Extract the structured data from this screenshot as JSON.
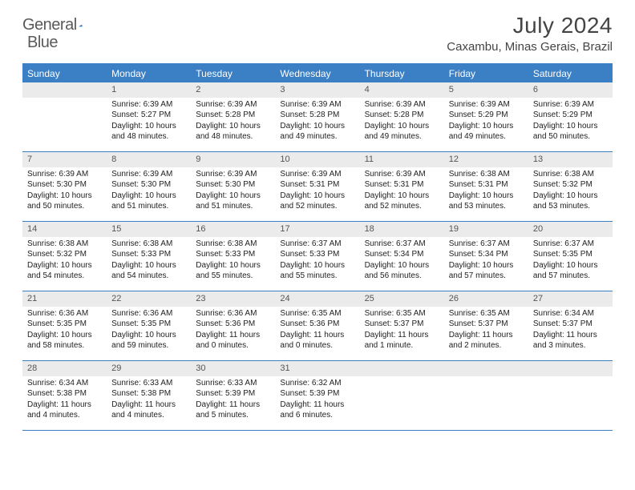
{
  "logo": {
    "text1": "General",
    "text2": "Blue"
  },
  "title": "July 2024",
  "location": "Caxambu, Minas Gerais, Brazil",
  "colors": {
    "accent": "#3b7fc4",
    "dayhead_bg": "#ebebeb"
  },
  "dow": [
    "Sunday",
    "Monday",
    "Tuesday",
    "Wednesday",
    "Thursday",
    "Friday",
    "Saturday"
  ],
  "first_weekday_offset": 1,
  "days": [
    {
      "n": 1,
      "sr": "6:39 AM",
      "ss": "5:27 PM",
      "dl": "10 hours and 48 minutes."
    },
    {
      "n": 2,
      "sr": "6:39 AM",
      "ss": "5:28 PM",
      "dl": "10 hours and 48 minutes."
    },
    {
      "n": 3,
      "sr": "6:39 AM",
      "ss": "5:28 PM",
      "dl": "10 hours and 49 minutes."
    },
    {
      "n": 4,
      "sr": "6:39 AM",
      "ss": "5:28 PM",
      "dl": "10 hours and 49 minutes."
    },
    {
      "n": 5,
      "sr": "6:39 AM",
      "ss": "5:29 PM",
      "dl": "10 hours and 49 minutes."
    },
    {
      "n": 6,
      "sr": "6:39 AM",
      "ss": "5:29 PM",
      "dl": "10 hours and 50 minutes."
    },
    {
      "n": 7,
      "sr": "6:39 AM",
      "ss": "5:30 PM",
      "dl": "10 hours and 50 minutes."
    },
    {
      "n": 8,
      "sr": "6:39 AM",
      "ss": "5:30 PM",
      "dl": "10 hours and 51 minutes."
    },
    {
      "n": 9,
      "sr": "6:39 AM",
      "ss": "5:30 PM",
      "dl": "10 hours and 51 minutes."
    },
    {
      "n": 10,
      "sr": "6:39 AM",
      "ss": "5:31 PM",
      "dl": "10 hours and 52 minutes."
    },
    {
      "n": 11,
      "sr": "6:39 AM",
      "ss": "5:31 PM",
      "dl": "10 hours and 52 minutes."
    },
    {
      "n": 12,
      "sr": "6:38 AM",
      "ss": "5:31 PM",
      "dl": "10 hours and 53 minutes."
    },
    {
      "n": 13,
      "sr": "6:38 AM",
      "ss": "5:32 PM",
      "dl": "10 hours and 53 minutes."
    },
    {
      "n": 14,
      "sr": "6:38 AM",
      "ss": "5:32 PM",
      "dl": "10 hours and 54 minutes."
    },
    {
      "n": 15,
      "sr": "6:38 AM",
      "ss": "5:33 PM",
      "dl": "10 hours and 54 minutes."
    },
    {
      "n": 16,
      "sr": "6:38 AM",
      "ss": "5:33 PM",
      "dl": "10 hours and 55 minutes."
    },
    {
      "n": 17,
      "sr": "6:37 AM",
      "ss": "5:33 PM",
      "dl": "10 hours and 55 minutes."
    },
    {
      "n": 18,
      "sr": "6:37 AM",
      "ss": "5:34 PM",
      "dl": "10 hours and 56 minutes."
    },
    {
      "n": 19,
      "sr": "6:37 AM",
      "ss": "5:34 PM",
      "dl": "10 hours and 57 minutes."
    },
    {
      "n": 20,
      "sr": "6:37 AM",
      "ss": "5:35 PM",
      "dl": "10 hours and 57 minutes."
    },
    {
      "n": 21,
      "sr": "6:36 AM",
      "ss": "5:35 PM",
      "dl": "10 hours and 58 minutes."
    },
    {
      "n": 22,
      "sr": "6:36 AM",
      "ss": "5:35 PM",
      "dl": "10 hours and 59 minutes."
    },
    {
      "n": 23,
      "sr": "6:36 AM",
      "ss": "5:36 PM",
      "dl": "11 hours and 0 minutes."
    },
    {
      "n": 24,
      "sr": "6:35 AM",
      "ss": "5:36 PM",
      "dl": "11 hours and 0 minutes."
    },
    {
      "n": 25,
      "sr": "6:35 AM",
      "ss": "5:37 PM",
      "dl": "11 hours and 1 minute."
    },
    {
      "n": 26,
      "sr": "6:35 AM",
      "ss": "5:37 PM",
      "dl": "11 hours and 2 minutes."
    },
    {
      "n": 27,
      "sr": "6:34 AM",
      "ss": "5:37 PM",
      "dl": "11 hours and 3 minutes."
    },
    {
      "n": 28,
      "sr": "6:34 AM",
      "ss": "5:38 PM",
      "dl": "11 hours and 4 minutes."
    },
    {
      "n": 29,
      "sr": "6:33 AM",
      "ss": "5:38 PM",
      "dl": "11 hours and 4 minutes."
    },
    {
      "n": 30,
      "sr": "6:33 AM",
      "ss": "5:39 PM",
      "dl": "11 hours and 5 minutes."
    },
    {
      "n": 31,
      "sr": "6:32 AM",
      "ss": "5:39 PM",
      "dl": "11 hours and 6 minutes."
    }
  ],
  "labels": {
    "sunrise": "Sunrise:",
    "sunset": "Sunset:",
    "daylight": "Daylight:"
  }
}
